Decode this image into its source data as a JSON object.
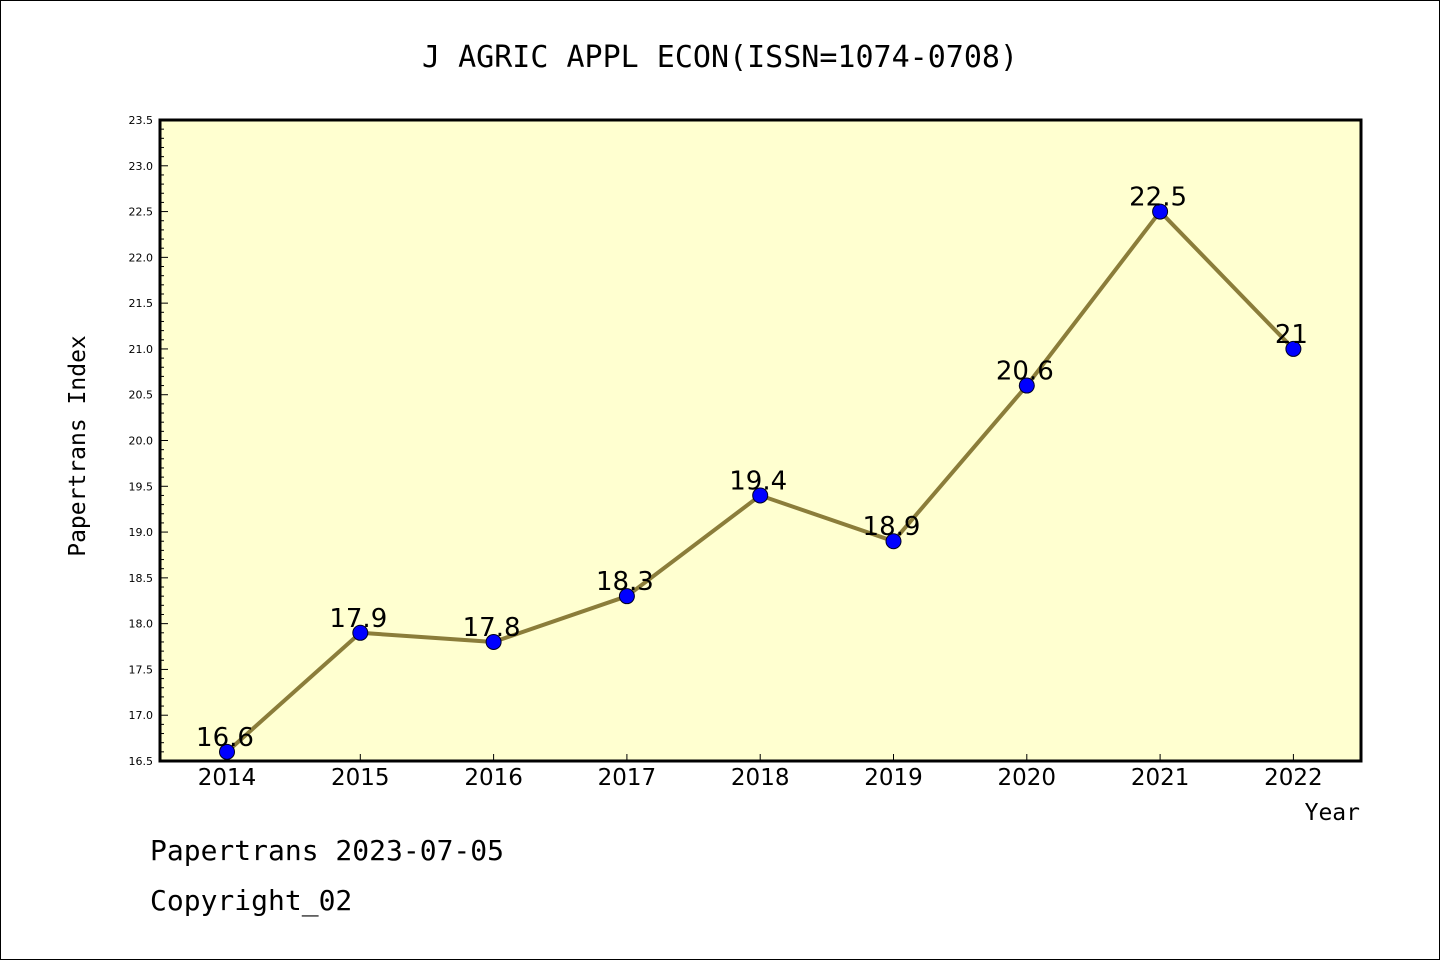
{
  "chart_data": {
    "type": "line",
    "title": "J AGRIC APPL ECON(ISSN=1074-0708)",
    "xlabel": "Year",
    "ylabel": "Papertrans Index",
    "categories": [
      "2014",
      "2015",
      "2016",
      "2017",
      "2018",
      "2019",
      "2020",
      "2021",
      "2022"
    ],
    "values": [
      16.6,
      17.9,
      17.8,
      18.3,
      19.4,
      18.9,
      20.6,
      22.5,
      21.0
    ],
    "data_labels": [
      "16.6",
      "17.9",
      "17.8",
      "18.3",
      "19.4",
      "18.9",
      "20.6",
      "22.5",
      "21"
    ],
    "ylim": [
      16.5,
      23.5
    ],
    "yticks": [
      "16.5",
      "17.0",
      "17.5",
      "18.0",
      "18.5",
      "19.0",
      "19.5",
      "20.0",
      "20.5",
      "21.0",
      "21.5",
      "22.0",
      "22.5",
      "23.0",
      "23.5"
    ],
    "grid": false,
    "legend": "none",
    "colors": {
      "plot_background": "#ffffd0",
      "line": "#8b7d3a",
      "marker": "#0000ff"
    }
  },
  "footer": {
    "line1": "Papertrans 2023-07-05",
    "line2": "Copyright_02"
  }
}
